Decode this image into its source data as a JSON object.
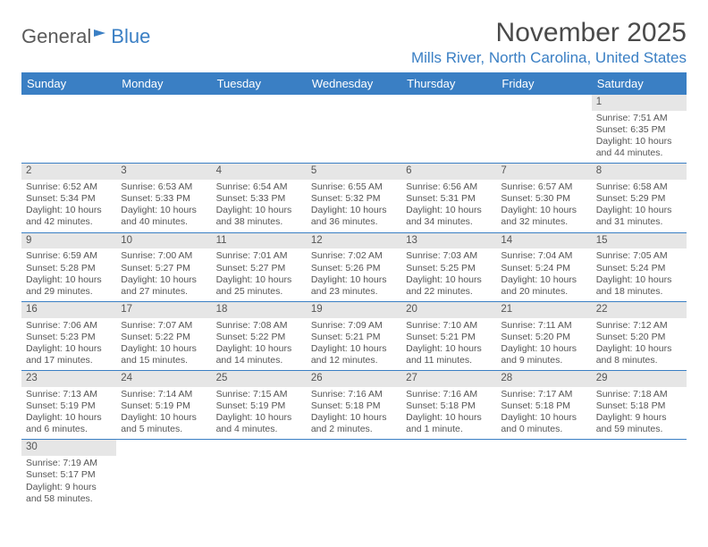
{
  "brand": {
    "part1": "General",
    "part2": "Blue"
  },
  "title": "November 2025",
  "location": "Mills River, North Carolina, United States",
  "colors": {
    "accent": "#3a7fc4",
    "header_text": "#ffffff",
    "daynum_bg": "#e6e6e6",
    "body_text": "#555555",
    "page_bg": "#ffffff"
  },
  "daynames": [
    "Sunday",
    "Monday",
    "Tuesday",
    "Wednesday",
    "Thursday",
    "Friday",
    "Saturday"
  ],
  "weeks": [
    [
      null,
      null,
      null,
      null,
      null,
      null,
      {
        "n": "1",
        "sr": "Sunrise: 7:51 AM",
        "ss": "Sunset: 6:35 PM",
        "dl": "Daylight: 10 hours and 44 minutes."
      }
    ],
    [
      {
        "n": "2",
        "sr": "Sunrise: 6:52 AM",
        "ss": "Sunset: 5:34 PM",
        "dl": "Daylight: 10 hours and 42 minutes."
      },
      {
        "n": "3",
        "sr": "Sunrise: 6:53 AM",
        "ss": "Sunset: 5:33 PM",
        "dl": "Daylight: 10 hours and 40 minutes."
      },
      {
        "n": "4",
        "sr": "Sunrise: 6:54 AM",
        "ss": "Sunset: 5:33 PM",
        "dl": "Daylight: 10 hours and 38 minutes."
      },
      {
        "n": "5",
        "sr": "Sunrise: 6:55 AM",
        "ss": "Sunset: 5:32 PM",
        "dl": "Daylight: 10 hours and 36 minutes."
      },
      {
        "n": "6",
        "sr": "Sunrise: 6:56 AM",
        "ss": "Sunset: 5:31 PM",
        "dl": "Daylight: 10 hours and 34 minutes."
      },
      {
        "n": "7",
        "sr": "Sunrise: 6:57 AM",
        "ss": "Sunset: 5:30 PM",
        "dl": "Daylight: 10 hours and 32 minutes."
      },
      {
        "n": "8",
        "sr": "Sunrise: 6:58 AM",
        "ss": "Sunset: 5:29 PM",
        "dl": "Daylight: 10 hours and 31 minutes."
      }
    ],
    [
      {
        "n": "9",
        "sr": "Sunrise: 6:59 AM",
        "ss": "Sunset: 5:28 PM",
        "dl": "Daylight: 10 hours and 29 minutes."
      },
      {
        "n": "10",
        "sr": "Sunrise: 7:00 AM",
        "ss": "Sunset: 5:27 PM",
        "dl": "Daylight: 10 hours and 27 minutes."
      },
      {
        "n": "11",
        "sr": "Sunrise: 7:01 AM",
        "ss": "Sunset: 5:27 PM",
        "dl": "Daylight: 10 hours and 25 minutes."
      },
      {
        "n": "12",
        "sr": "Sunrise: 7:02 AM",
        "ss": "Sunset: 5:26 PM",
        "dl": "Daylight: 10 hours and 23 minutes."
      },
      {
        "n": "13",
        "sr": "Sunrise: 7:03 AM",
        "ss": "Sunset: 5:25 PM",
        "dl": "Daylight: 10 hours and 22 minutes."
      },
      {
        "n": "14",
        "sr": "Sunrise: 7:04 AM",
        "ss": "Sunset: 5:24 PM",
        "dl": "Daylight: 10 hours and 20 minutes."
      },
      {
        "n": "15",
        "sr": "Sunrise: 7:05 AM",
        "ss": "Sunset: 5:24 PM",
        "dl": "Daylight: 10 hours and 18 minutes."
      }
    ],
    [
      {
        "n": "16",
        "sr": "Sunrise: 7:06 AM",
        "ss": "Sunset: 5:23 PM",
        "dl": "Daylight: 10 hours and 17 minutes."
      },
      {
        "n": "17",
        "sr": "Sunrise: 7:07 AM",
        "ss": "Sunset: 5:22 PM",
        "dl": "Daylight: 10 hours and 15 minutes."
      },
      {
        "n": "18",
        "sr": "Sunrise: 7:08 AM",
        "ss": "Sunset: 5:22 PM",
        "dl": "Daylight: 10 hours and 14 minutes."
      },
      {
        "n": "19",
        "sr": "Sunrise: 7:09 AM",
        "ss": "Sunset: 5:21 PM",
        "dl": "Daylight: 10 hours and 12 minutes."
      },
      {
        "n": "20",
        "sr": "Sunrise: 7:10 AM",
        "ss": "Sunset: 5:21 PM",
        "dl": "Daylight: 10 hours and 11 minutes."
      },
      {
        "n": "21",
        "sr": "Sunrise: 7:11 AM",
        "ss": "Sunset: 5:20 PM",
        "dl": "Daylight: 10 hours and 9 minutes."
      },
      {
        "n": "22",
        "sr": "Sunrise: 7:12 AM",
        "ss": "Sunset: 5:20 PM",
        "dl": "Daylight: 10 hours and 8 minutes."
      }
    ],
    [
      {
        "n": "23",
        "sr": "Sunrise: 7:13 AM",
        "ss": "Sunset: 5:19 PM",
        "dl": "Daylight: 10 hours and 6 minutes."
      },
      {
        "n": "24",
        "sr": "Sunrise: 7:14 AM",
        "ss": "Sunset: 5:19 PM",
        "dl": "Daylight: 10 hours and 5 minutes."
      },
      {
        "n": "25",
        "sr": "Sunrise: 7:15 AM",
        "ss": "Sunset: 5:19 PM",
        "dl": "Daylight: 10 hours and 4 minutes."
      },
      {
        "n": "26",
        "sr": "Sunrise: 7:16 AM",
        "ss": "Sunset: 5:18 PM",
        "dl": "Daylight: 10 hours and 2 minutes."
      },
      {
        "n": "27",
        "sr": "Sunrise: 7:16 AM",
        "ss": "Sunset: 5:18 PM",
        "dl": "Daylight: 10 hours and 1 minute."
      },
      {
        "n": "28",
        "sr": "Sunrise: 7:17 AM",
        "ss": "Sunset: 5:18 PM",
        "dl": "Daylight: 10 hours and 0 minutes."
      },
      {
        "n": "29",
        "sr": "Sunrise: 7:18 AM",
        "ss": "Sunset: 5:18 PM",
        "dl": "Daylight: 9 hours and 59 minutes."
      }
    ],
    [
      {
        "n": "30",
        "sr": "Sunrise: 7:19 AM",
        "ss": "Sunset: 5:17 PM",
        "dl": "Daylight: 9 hours and 58 minutes."
      },
      null,
      null,
      null,
      null,
      null,
      null
    ]
  ]
}
